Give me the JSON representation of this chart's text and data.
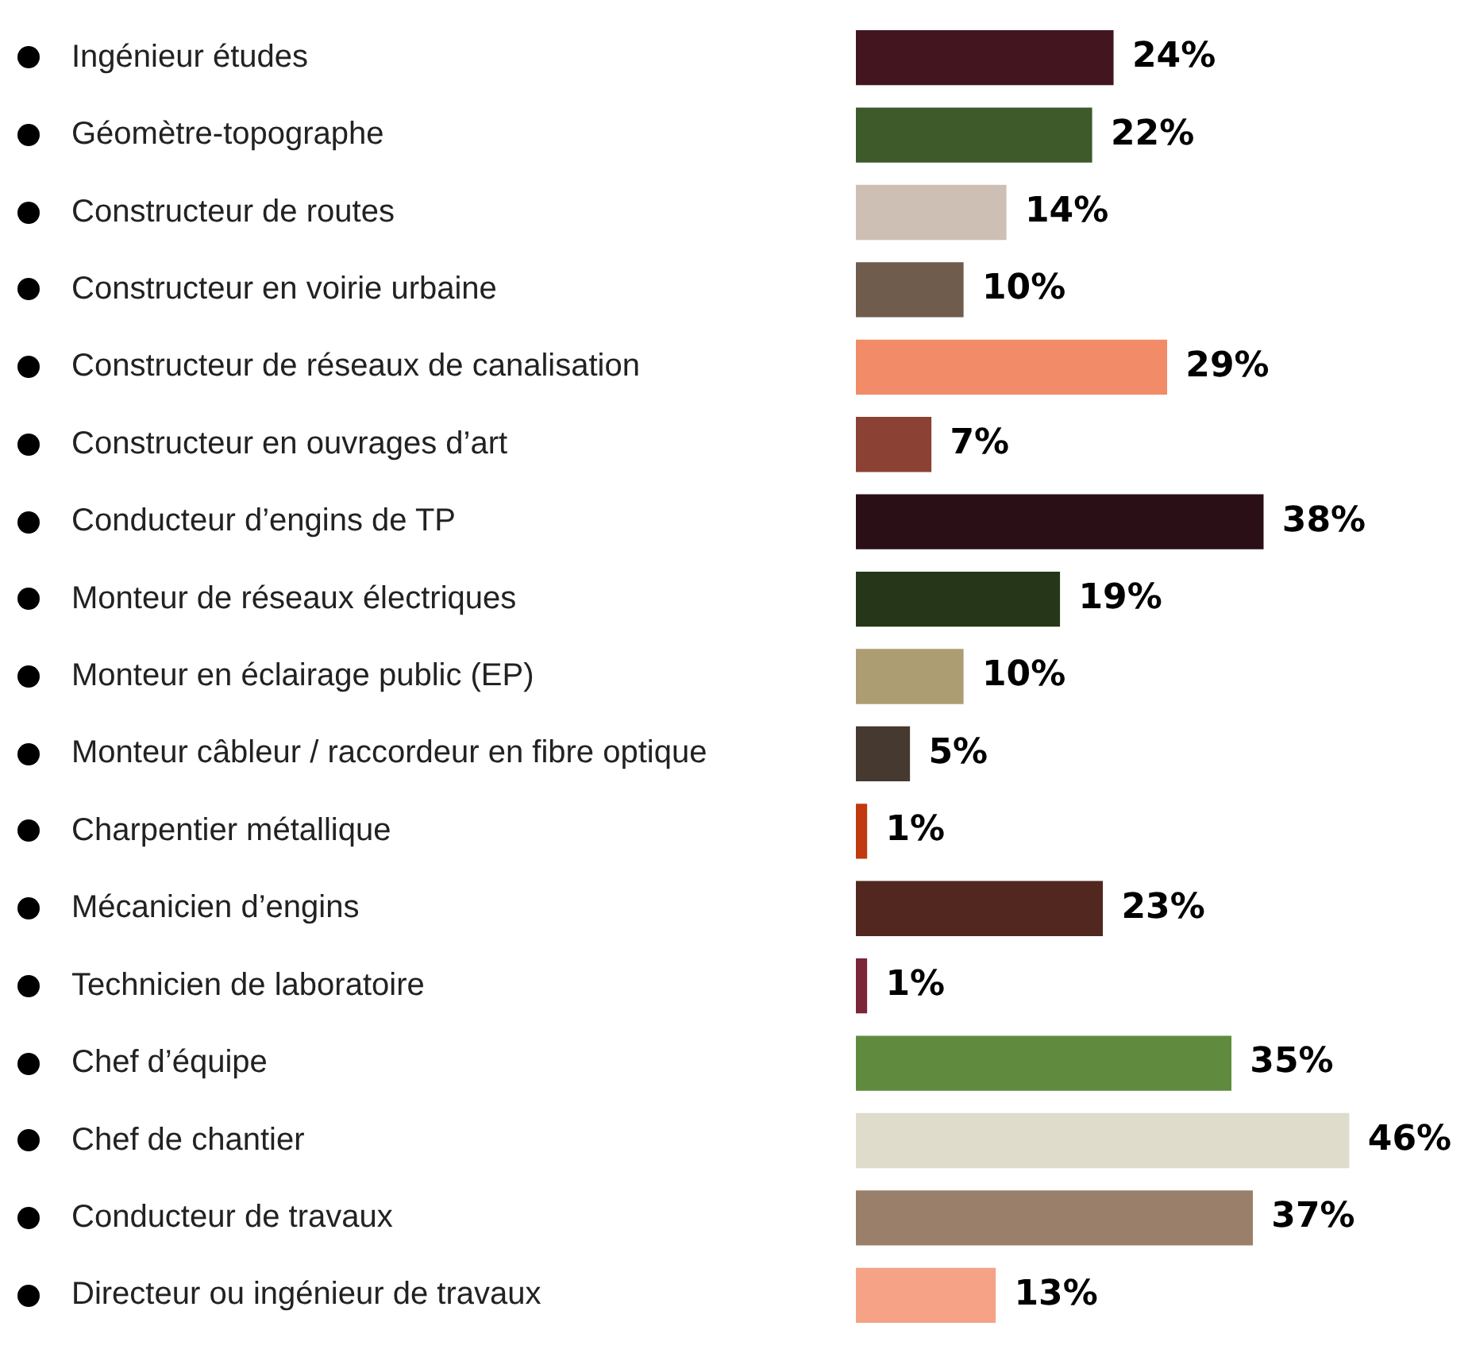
{
  "chart_data": {
    "type": "bar",
    "orientation": "horizontal",
    "legend": false,
    "categories": [
      "Ingénieur études",
      "Géomètre-topographe",
      "Constructeur de routes",
      "Constructeur en voirie urbaine",
      "Constructeur de réseaux de canalisation",
      "Constructeur en ouvrages d’art",
      "Conducteur d’engins de TP",
      "Monteur de réseaux électriques",
      "Monteur en éclairage public (EP)",
      "Monteur câbleur / raccordeur en fibre optique",
      "Charpentier métallique",
      "Mécanicien d’engins",
      "Technicien de laboratoire",
      "Chef d’équipe",
      "Chef de chantier",
      "Conducteur de travaux",
      "Directeur ou ingénieur de travaux"
    ],
    "values": [
      24,
      22,
      14,
      10,
      29,
      7,
      38,
      19,
      10,
      5,
      1,
      23,
      1,
      35,
      46,
      37,
      13
    ],
    "value_labels": [
      "24%",
      "22%",
      "14%",
      "10%",
      "29%",
      "7%",
      "38%",
      "19%",
      "10%",
      "5%",
      "1%",
      "23%",
      "1%",
      "35%",
      "46%",
      "37%",
      "13%"
    ],
    "colors": [
      "#43161f",
      "#3e5a2a",
      "#cdbfb4",
      "#6f5c4c",
      "#f28b67",
      "#8b4133",
      "#2a0f16",
      "#253619",
      "#ad9d72",
      "#463930",
      "#c0390f",
      "#522720",
      "#7a2638",
      "#608b3e",
      "#dfdccc",
      "#9a806a",
      "#f5a286"
    ]
  }
}
